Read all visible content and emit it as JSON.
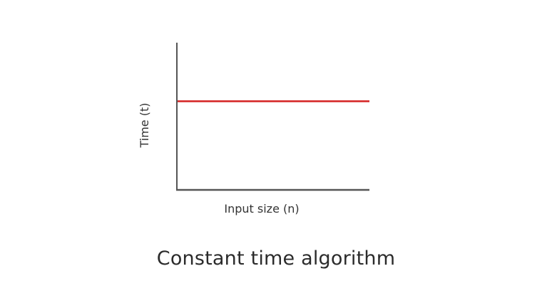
{
  "chart_data": {
    "type": "line",
    "title": "",
    "xlabel": "Input size (n)",
    "ylabel": "Time (t)",
    "series": [
      {
        "name": "",
        "x": [
          0,
          1
        ],
        "y": [
          0.6,
          0.6
        ]
      }
    ],
    "xlim": [
      0,
      1
    ],
    "ylim": [
      0,
      1
    ],
    "grid": false,
    "legend": "none",
    "axis_color": "#555555",
    "line_color": "#d42020"
  },
  "caption": "Constant time algorithm"
}
